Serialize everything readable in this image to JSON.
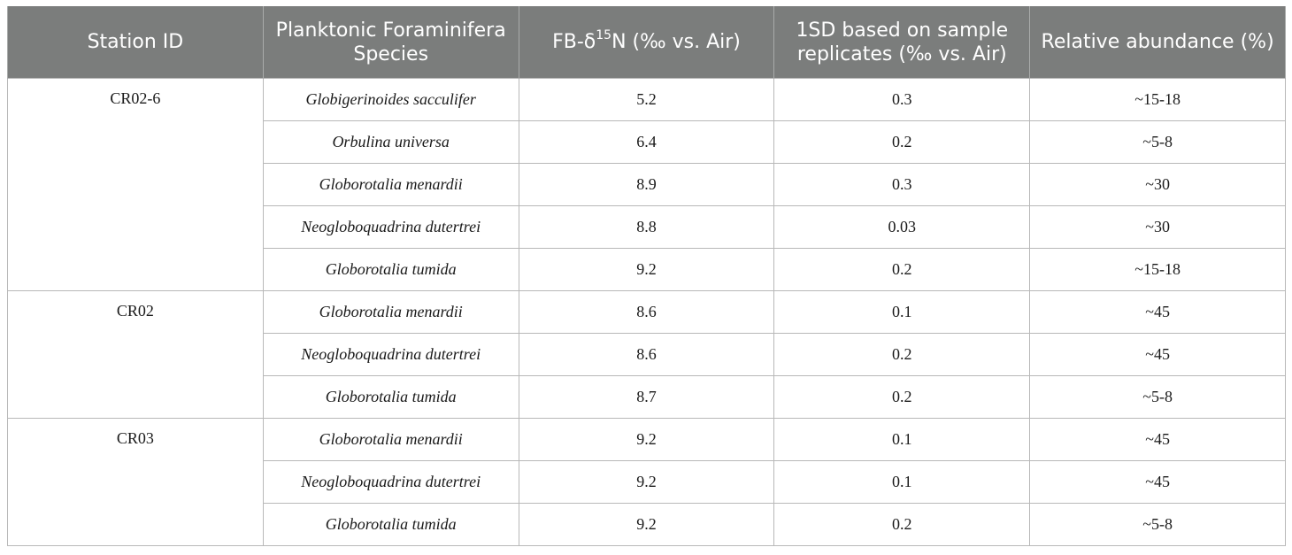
{
  "table": {
    "headers": [
      "Station ID",
      "Planktonic Foraminifera Species",
      {
        "pre": "FB-δ",
        "sup": "15",
        "post": "N (‰ vs. Air)"
      },
      "1SD based on sample replicates (‰ vs. Air)",
      "Relative abundance (%)"
    ],
    "groups": [
      {
        "station": "CR02-6",
        "rows": [
          {
            "species": "Globigerinoides sacculifer",
            "d15n": "5.2",
            "sd": "0.3",
            "abundance": "~15-18"
          },
          {
            "species": "Orbulina universa",
            "d15n": "6.4",
            "sd": "0.2",
            "abundance": "~5-8"
          },
          {
            "species": "Globorotalia menardii",
            "d15n": "8.9",
            "sd": "0.3",
            "abundance": "~30"
          },
          {
            "species": "Neogloboquadrina dutertrei",
            "d15n": "8.8",
            "sd": "0.03",
            "abundance": "~30"
          },
          {
            "species": "Globorotalia tumida",
            "d15n": "9.2",
            "sd": "0.2",
            "abundance": "~15-18"
          }
        ]
      },
      {
        "station": "CR02",
        "rows": [
          {
            "species": "Globorotalia menardii",
            "d15n": "8.6",
            "sd": "0.1",
            "abundance": "~45"
          },
          {
            "species": "Neogloboquadrina dutertrei",
            "d15n": "8.6",
            "sd": "0.2",
            "abundance": "~45"
          },
          {
            "species": "Globorotalia tumida",
            "d15n": "8.7",
            "sd": "0.2",
            "abundance": "~5-8"
          }
        ]
      },
      {
        "station": "CR03",
        "rows": [
          {
            "species": "Globorotalia menardii",
            "d15n": "9.2",
            "sd": "0.1",
            "abundance": "~45"
          },
          {
            "species": "Neogloboquadrina dutertrei",
            "d15n": "9.2",
            "sd": "0.1",
            "abundance": "~45"
          },
          {
            "species": "Globorotalia tumida",
            "d15n": "9.2",
            "sd": "0.2",
            "abundance": "~5-8"
          }
        ]
      }
    ]
  }
}
